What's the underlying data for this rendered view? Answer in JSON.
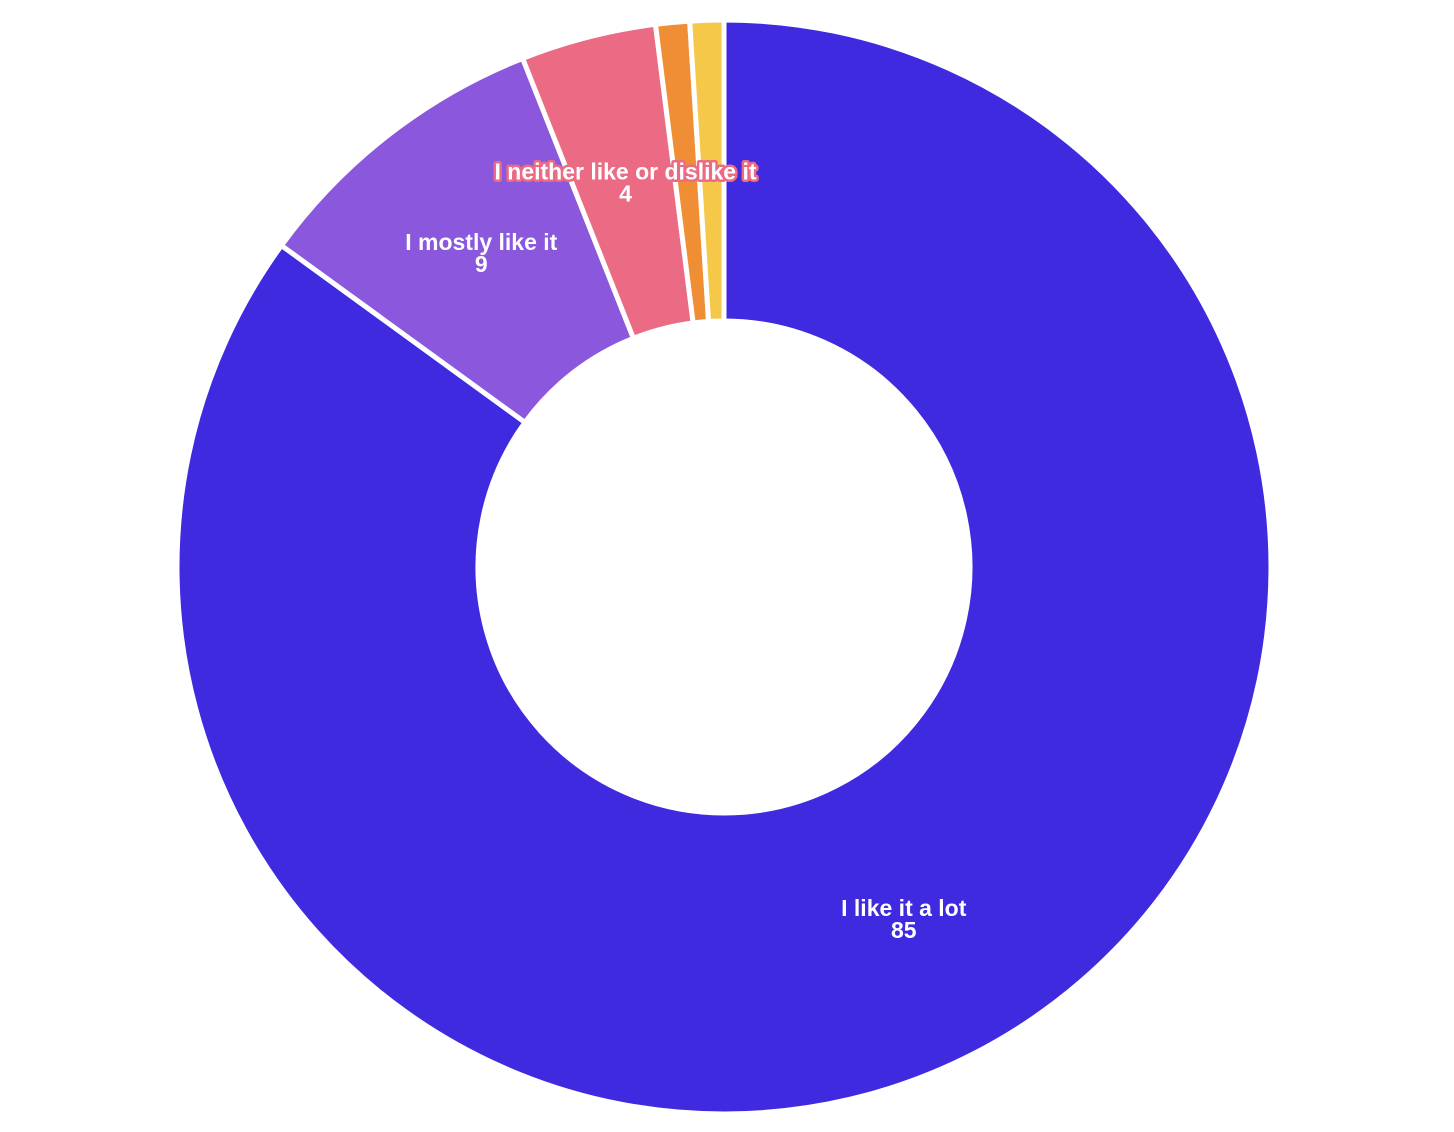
{
  "chart_data": {
    "type": "donut",
    "categories": [
      "I like it a lot",
      "I mostly like it",
      "I neither like or dislike it",
      null,
      null
    ],
    "values": [
      85,
      9,
      4,
      1,
      1
    ],
    "colors": [
      "#3f2adf",
      "#8a57dd",
      "#ec6b84",
      "#f08e35",
      "#f5c84a"
    ],
    "start_angle": 0,
    "direction": "clockwise"
  }
}
